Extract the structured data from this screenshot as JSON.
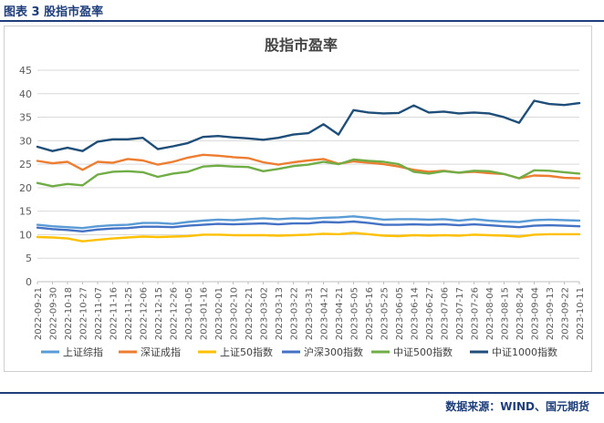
{
  "caption": "图表 3 股指市盈率",
  "source": "数据来源：WIND、国元期货",
  "chart_data": {
    "type": "line",
    "title": "股指市盈率",
    "xlabel": "",
    "ylabel": "",
    "ylim": [
      0,
      45
    ],
    "yticks": [
      0,
      5,
      10,
      15,
      20,
      25,
      30,
      35,
      40,
      45
    ],
    "grid": true,
    "legend_position": "bottom",
    "x_ticks": [
      "2022-09-21",
      "2022-09-30",
      "2022-10-18",
      "2022-10-27",
      "2022-11-07",
      "2022-11-16",
      "2022-11-25",
      "2022-12-06",
      "2022-12-15",
      "2022-12-26",
      "2023-01-05",
      "2023-01-16",
      "2023-02-01",
      "2023-02-10",
      "2023-02-21",
      "2023-03-02",
      "2023-03-13",
      "2023-03-22",
      "2023-03-31",
      "2023-04-12",
      "2023-04-21",
      "2023-05-05",
      "2023-05-16",
      "2023-05-25",
      "2023-06-05",
      "2023-06-14",
      "2023-06-27",
      "2023-07-06",
      "2023-07-17",
      "2023-07-26",
      "2023-08-04",
      "2023-08-15",
      "2023-08-24",
      "2023-09-04",
      "2023-09-13",
      "2023-09-22",
      "2023-10-11"
    ],
    "series": [
      {
        "name": "上证综指",
        "color": "#5b9bd5",
        "values": [
          12.1,
          11.8,
          11.6,
          11.4,
          11.8,
          12.0,
          12.1,
          12.5,
          12.5,
          12.3,
          12.7,
          13.0,
          13.2,
          13.1,
          13.3,
          13.5,
          13.3,
          13.5,
          13.4,
          13.6,
          13.7,
          13.9,
          13.6,
          13.2,
          13.3,
          13.3,
          13.2,
          13.3,
          13.0,
          13.3,
          13.0,
          12.8,
          12.7,
          13.1,
          13.2,
          13.1,
          13.0
        ]
      },
      {
        "name": "深证成指",
        "color": "#ed7d31",
        "values": [
          25.7,
          25.2,
          25.5,
          23.8,
          25.5,
          25.3,
          26.1,
          25.8,
          24.9,
          25.5,
          26.4,
          27.0,
          26.8,
          26.5,
          26.3,
          25.4,
          24.9,
          25.4,
          25.8,
          26.1,
          25.1,
          25.6,
          25.3,
          25.0,
          24.5,
          23.8,
          23.4,
          23.6,
          23.2,
          23.4,
          23.1,
          22.9,
          22.0,
          22.6,
          22.5,
          22.1,
          22.0
        ]
      },
      {
        "name": "上证50指数",
        "color": "#ffc000",
        "values": [
          9.5,
          9.4,
          9.2,
          8.6,
          8.9,
          9.2,
          9.4,
          9.6,
          9.5,
          9.6,
          9.7,
          10.0,
          10.0,
          9.9,
          9.9,
          9.9,
          9.8,
          9.9,
          10.0,
          10.2,
          10.1,
          10.4,
          10.1,
          9.8,
          9.7,
          9.9,
          9.8,
          9.9,
          9.8,
          10.0,
          9.9,
          9.8,
          9.6,
          10.0,
          10.1,
          10.1,
          10.1
        ]
      },
      {
        "name": "沪深300指数",
        "color": "#4472c4",
        "values": [
          11.5,
          11.2,
          11.0,
          10.7,
          11.1,
          11.3,
          11.4,
          11.7,
          11.7,
          11.6,
          11.9,
          12.1,
          12.3,
          12.2,
          12.3,
          12.4,
          12.2,
          12.4,
          12.4,
          12.7,
          12.6,
          12.8,
          12.5,
          12.1,
          12.1,
          12.2,
          12.1,
          12.2,
          12.0,
          12.2,
          12.0,
          11.8,
          11.6,
          11.9,
          12.0,
          11.9,
          11.8
        ]
      },
      {
        "name": "中证500指数",
        "color": "#70ad47",
        "values": [
          21.0,
          20.3,
          20.8,
          20.5,
          22.8,
          23.4,
          23.5,
          23.3,
          22.3,
          23.0,
          23.4,
          24.5,
          24.7,
          24.5,
          24.4,
          23.5,
          24.0,
          24.6,
          24.9,
          25.5,
          25.0,
          26.0,
          25.7,
          25.5,
          25.0,
          23.4,
          23.0,
          23.5,
          23.2,
          23.6,
          23.5,
          22.9,
          22.0,
          23.7,
          23.6,
          23.3,
          23.0
        ]
      },
      {
        "name": "中证1000指数",
        "color": "#1f4e79",
        "values": [
          28.7,
          27.8,
          28.5,
          27.8,
          29.8,
          30.3,
          30.3,
          30.6,
          28.2,
          28.8,
          29.5,
          30.8,
          31.0,
          30.7,
          30.5,
          30.2,
          30.6,
          31.3,
          31.6,
          33.5,
          31.3,
          36.5,
          36.0,
          35.8,
          35.9,
          37.5,
          36.0,
          36.2,
          35.8,
          36.0,
          35.8,
          35.0,
          33.8,
          38.5,
          37.8,
          37.6,
          38.0
        ]
      }
    ]
  }
}
